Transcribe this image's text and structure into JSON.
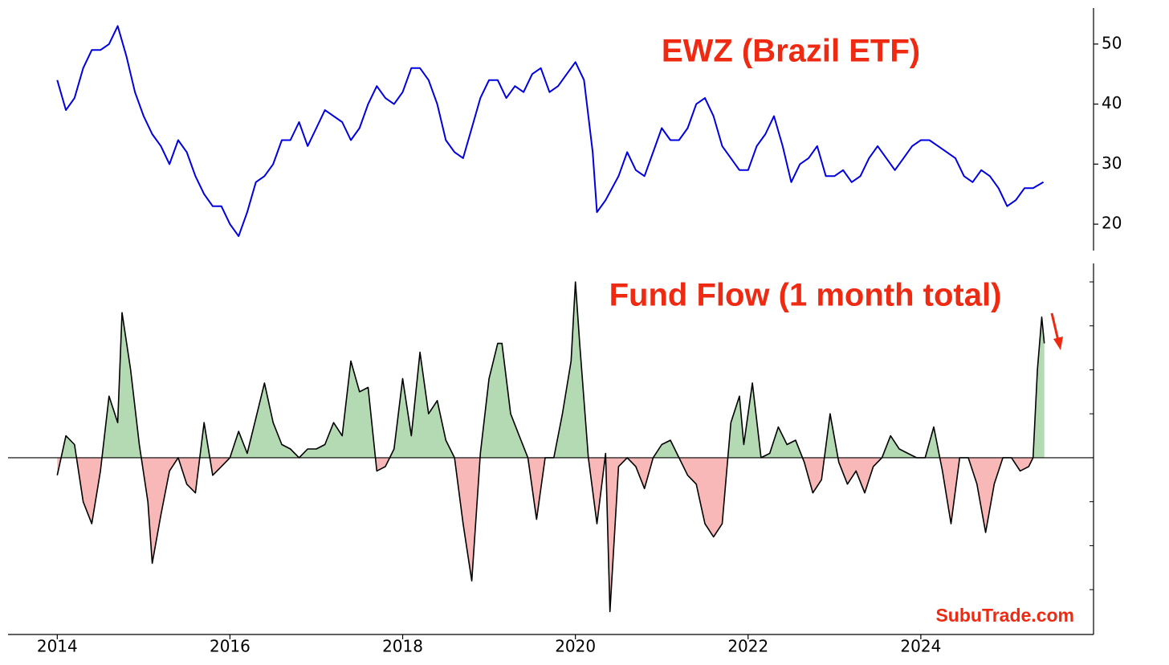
{
  "chart_data": [
    {
      "type": "line",
      "title": "EWZ (Brazil ETF)",
      "color": "#0000e0",
      "x": [
        2014.0,
        2014.1,
        2014.2,
        2014.3,
        2014.4,
        2014.5,
        2014.6,
        2014.7,
        2014.8,
        2014.9,
        2015.0,
        2015.1,
        2015.2,
        2015.3,
        2015.4,
        2015.5,
        2015.6,
        2015.7,
        2015.8,
        2015.9,
        2016.0,
        2016.1,
        2016.2,
        2016.3,
        2016.4,
        2016.5,
        2016.6,
        2016.7,
        2016.8,
        2016.9,
        2017.0,
        2017.1,
        2017.2,
        2017.3,
        2017.4,
        2017.5,
        2017.6,
        2017.7,
        2017.8,
        2017.9,
        2018.0,
        2018.1,
        2018.2,
        2018.3,
        2018.4,
        2018.5,
        2018.6,
        2018.7,
        2018.8,
        2018.9,
        2019.0,
        2019.1,
        2019.2,
        2019.3,
        2019.4,
        2019.5,
        2019.6,
        2019.7,
        2019.8,
        2019.9,
        2020.0,
        2020.1,
        2020.2,
        2020.25,
        2020.35,
        2020.5,
        2020.6,
        2020.7,
        2020.8,
        2020.9,
        2021.0,
        2021.1,
        2021.2,
        2021.3,
        2021.4,
        2021.5,
        2021.6,
        2021.7,
        2021.8,
        2021.9,
        2022.0,
        2022.1,
        2022.2,
        2022.3,
        2022.4,
        2022.5,
        2022.6,
        2022.7,
        2022.8,
        2022.9,
        2023.0,
        2023.1,
        2023.2,
        2023.3,
        2023.4,
        2023.5,
        2023.6,
        2023.7,
        2023.8,
        2023.9,
        2024.0,
        2024.1,
        2024.2,
        2024.3,
        2024.4,
        2024.5,
        2024.6,
        2024.7,
        2024.8,
        2024.9,
        2025.0,
        2025.1,
        2025.2,
        2025.3,
        2025.42
      ],
      "values": [
        44,
        39,
        41,
        46,
        49,
        49,
        50,
        53,
        48,
        42,
        38,
        35,
        33,
        30,
        34,
        32,
        28,
        25,
        23,
        23,
        20,
        18,
        22,
        27,
        28,
        30,
        34,
        34,
        37,
        33,
        36,
        39,
        38,
        37,
        34,
        36,
        40,
        43,
        41,
        40,
        42,
        46,
        46,
        44,
        40,
        34,
        32,
        31,
        36,
        41,
        44,
        44,
        41,
        43,
        42,
        45,
        46,
        42,
        43,
        45,
        47,
        44,
        32,
        22,
        24,
        28,
        32,
        29,
        28,
        32,
        36,
        34,
        34,
        36,
        40,
        41,
        38,
        33,
        31,
        29,
        29,
        33,
        35,
        38,
        33,
        27,
        30,
        31,
        33,
        28,
        28,
        29,
        27,
        28,
        31,
        33,
        31,
        29,
        31,
        33,
        34,
        34,
        33,
        32,
        31,
        28,
        27,
        29,
        28,
        26,
        23,
        24,
        26,
        26,
        27
      ],
      "xlim": [
        2013.43,
        2026.0
      ],
      "ylim": [
        15.6,
        56
      ],
      "yticks": [
        20,
        30,
        40,
        50
      ]
    },
    {
      "type": "area",
      "title": "Fund Flow (1 month total)",
      "annotation": "SubuTrade.com",
      "line_color": "#000000",
      "pos_color": "#b3dab3",
      "neg_color": "#f9b8b8",
      "zero_line": true,
      "x": [
        2014.0,
        2014.1,
        2014.2,
        2014.3,
        2014.4,
        2014.5,
        2014.6,
        2014.7,
        2014.75,
        2014.85,
        2014.95,
        2015.05,
        2015.1,
        2015.2,
        2015.3,
        2015.4,
        2015.5,
        2015.6,
        2015.7,
        2015.8,
        2015.9,
        2016.0,
        2016.1,
        2016.2,
        2016.3,
        2016.4,
        2016.5,
        2016.6,
        2016.7,
        2016.8,
        2016.9,
        2017.0,
        2017.1,
        2017.2,
        2017.3,
        2017.4,
        2017.5,
        2017.6,
        2017.7,
        2017.8,
        2017.9,
        2018.0,
        2018.1,
        2018.2,
        2018.3,
        2018.4,
        2018.5,
        2018.6,
        2018.7,
        2018.8,
        2018.9,
        2019.0,
        2019.1,
        2019.15,
        2019.25,
        2019.35,
        2019.45,
        2019.55,
        2019.65,
        2019.75,
        2019.85,
        2019.95,
        2020.0,
        2020.05,
        2020.15,
        2020.25,
        2020.35,
        2020.4,
        2020.5,
        2020.6,
        2020.7,
        2020.8,
        2020.9,
        2021.0,
        2021.1,
        2021.2,
        2021.3,
        2021.4,
        2021.5,
        2021.6,
        2021.7,
        2021.8,
        2021.9,
        2021.95,
        2022.05,
        2022.15,
        2022.25,
        2022.35,
        2022.45,
        2022.55,
        2022.65,
        2022.75,
        2022.85,
        2022.95,
        2023.05,
        2023.15,
        2023.25,
        2023.35,
        2023.45,
        2023.55,
        2023.65,
        2023.75,
        2023.85,
        2023.95,
        2024.05,
        2024.15,
        2024.25,
        2024.35,
        2024.45,
        2024.55,
        2024.65,
        2024.75,
        2024.85,
        2024.95,
        2025.05,
        2025.15,
        2025.25,
        2025.3,
        2025.35,
        2025.4,
        2025.43
      ],
      "values": [
        -0.4,
        0.5,
        0.3,
        -1.0,
        -1.5,
        -0.3,
        1.4,
        0.8,
        3.3,
        2.0,
        0.3,
        -1.0,
        -2.4,
        -1.3,
        -0.3,
        0,
        -0.6,
        -0.8,
        0.8,
        -0.4,
        -0.2,
        0,
        0.6,
        0.1,
        0.9,
        1.7,
        0.8,
        0.3,
        0.2,
        0,
        0.2,
        0.2,
        0.3,
        0.8,
        0.5,
        2.2,
        1.5,
        1.6,
        -0.3,
        -0.2,
        0.2,
        1.8,
        0.5,
        2.4,
        1.0,
        1.3,
        0.4,
        0,
        -1.5,
        -2.8,
        0.1,
        1.8,
        2.6,
        2.6,
        1.0,
        0.5,
        0,
        -1.4,
        0,
        0,
        1.0,
        2.2,
        4.0,
        2.6,
        0,
        -1.5,
        0.1,
        -3.5,
        -0.2,
        0,
        -0.2,
        -0.7,
        0,
        0.3,
        0.4,
        0,
        -0.4,
        -0.6,
        -1.5,
        -1.8,
        -1.5,
        0.8,
        1.4,
        0.3,
        1.7,
        0,
        0.1,
        0.7,
        0.3,
        0.4,
        -0.1,
        -0.8,
        -0.5,
        1.0,
        -0.1,
        -0.6,
        -0.3,
        -0.8,
        -0.2,
        0,
        0.5,
        0.2,
        0.1,
        0,
        0,
        0.7,
        -0.3,
        -1.5,
        0,
        0,
        -0.6,
        -1.7,
        -0.6,
        0,
        0,
        -0.3,
        -0.2,
        0,
        2.0,
        3.2,
        2.6
      ],
      "xlim": [
        2013.43,
        2026.0
      ],
      "xticks": [
        2014,
        2016,
        2018,
        2020,
        2022,
        2024
      ],
      "ylim": [
        -4.02,
        4.42
      ],
      "yticks": [
        -3,
        -2,
        -1,
        0,
        1,
        2,
        3,
        4
      ]
    }
  ]
}
